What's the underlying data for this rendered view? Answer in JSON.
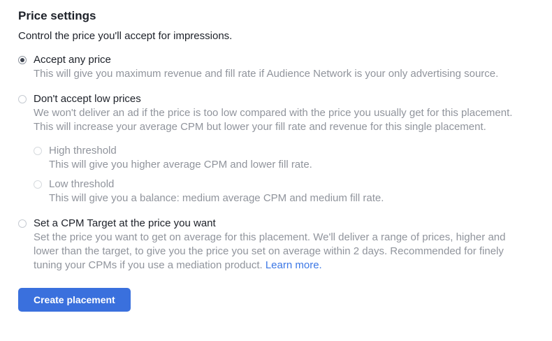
{
  "page": {
    "title": "Price settings",
    "subtitle": "Control the price you'll accept for impressions."
  },
  "options": [
    {
      "label": "Accept any price",
      "description": "This will give you maximum revenue and fill rate if Audience Network is your only advertising source.",
      "selected": true,
      "disabled": false
    },
    {
      "label": "Don't accept low prices",
      "description": "We won't deliver an ad if the price is too low compared with the price you usually get for this placement. This will increase your average CPM but lower your fill rate and revenue for this single placement.",
      "selected": false,
      "disabled": false,
      "sub_options": [
        {
          "label": "High threshold",
          "description": "This will give you higher average CPM and lower fill rate.",
          "selected": false,
          "disabled": true
        },
        {
          "label": "Low threshold",
          "description": "This will give you a balance: medium average CPM and medium fill rate.",
          "selected": false,
          "disabled": true
        }
      ]
    },
    {
      "label": "Set a CPM Target at the price you want",
      "description": "Set the price you want to get on average for this placement. We'll deliver a range of prices, higher and lower than the target, to give you the price you set on average within 2 days. Recommended for finely tuning your CPMs if you use a mediation product.",
      "link_label": "Learn more.",
      "selected": false,
      "disabled": false
    }
  ],
  "footer": {
    "create_button_label": "Create placement"
  },
  "colors": {
    "text_dark": "#1d2129",
    "text_gray": "#90949c",
    "link_blue": "#3b77e5",
    "button_blue": "#3a70dd",
    "radio_ring": "#c6cbd2",
    "radio_ring_selected": "#8d949e",
    "radio_dot": "#3e4450"
  }
}
